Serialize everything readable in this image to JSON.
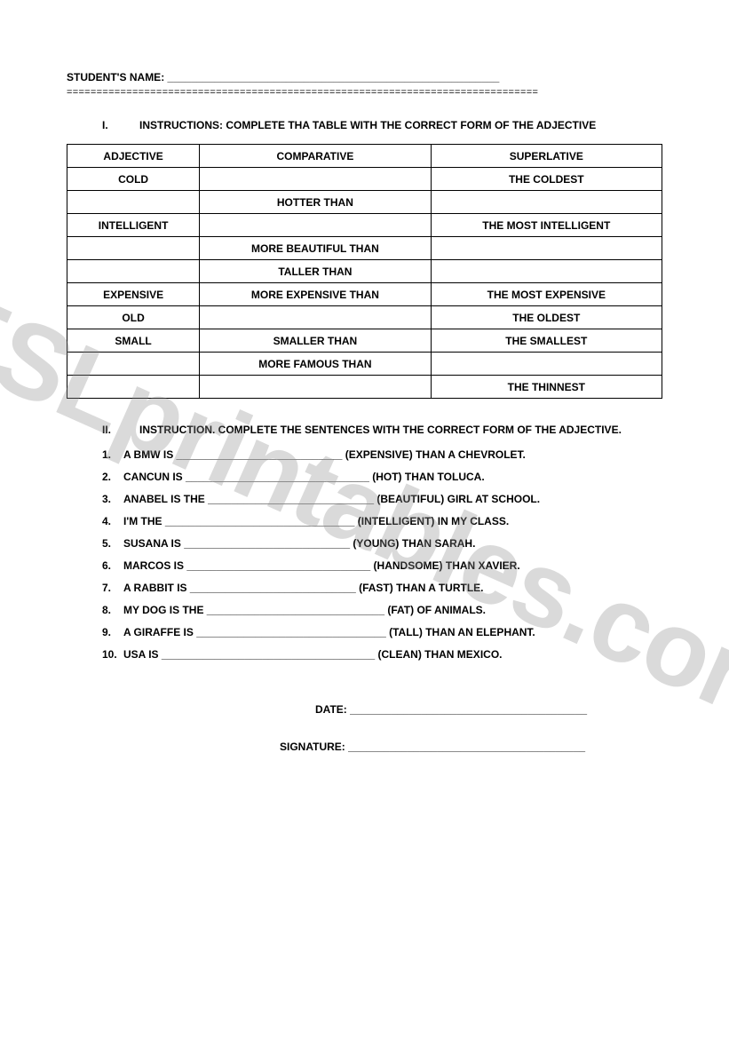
{
  "watermark_text": "ESLprintables.com",
  "colors": {
    "text": "#000000",
    "background": "#ffffff",
    "watermark": "rgba(140,140,140,0.32)",
    "border": "#000000"
  },
  "header": {
    "name_label": "STUDENT'S NAME: ________________________________________________________",
    "divider": "==============================================================================="
  },
  "section1": {
    "num": "I.",
    "title": "INSTRUCTIONS: COMPLETE THA TABLE WITH THE CORRECT FORM OF THE ADJECTIVE"
  },
  "table": {
    "columns": [
      "ADJECTIVE",
      "COMPARATIVE",
      "SUPERLATIVE"
    ],
    "rows": [
      [
        "COLD",
        "",
        "THE COLDEST"
      ],
      [
        "",
        "HOTTER THAN",
        ""
      ],
      [
        "INTELLIGENT",
        "",
        "THE MOST INTELLIGENT"
      ],
      [
        "",
        "MORE BEAUTIFUL THAN",
        ""
      ],
      [
        "",
        "TALLER THAN",
        ""
      ],
      [
        "EXPENSIVE",
        "MORE EXPENSIVE THAN",
        "THE MOST EXPENSIVE"
      ],
      [
        "OLD",
        "",
        "THE OLDEST"
      ],
      [
        "SMALL",
        "SMALLER THAN",
        "THE SMALLEST"
      ],
      [
        "",
        "MORE FAMOUS THAN",
        ""
      ],
      [
        "",
        "",
        "THE THINNEST"
      ]
    ]
  },
  "section2": {
    "num": "II.",
    "title": "INSTRUCTION. COMPLETE THE SENTENCES WITH THE CORRECT FORM OF THE ADJECTIVE."
  },
  "sentences": [
    {
      "n": "1.",
      "t": "A BMW IS ____________________________ (EXPENSIVE) THAN A CHEVROLET."
    },
    {
      "n": "2.",
      "t": "CANCUN IS _______________________________ (HOT) THAN TOLUCA."
    },
    {
      "n": "3.",
      "t": "ANABEL IS THE ____________________________ (BEAUTIFUL) GIRL AT SCHOOL."
    },
    {
      "n": "4.",
      "t": "I'M THE ________________________________ (INTELLIGENT) IN MY CLASS."
    },
    {
      "n": "5.",
      "t": "SUSANA IS ____________________________ (YOUNG) THAN SARAH."
    },
    {
      "n": "6.",
      "t": "MARCOS IS _______________________________ (HANDSOME) THAN XAVIER."
    },
    {
      "n": "7.",
      "t": "A RABBIT IS ____________________________ (FAST) THAN A TURTLE."
    },
    {
      "n": "8.",
      "t": "MY DOG IS THE ______________________________ (FAT) OF ANIMALS."
    },
    {
      "n": "9.",
      "t": "A GIRAFFE IS ________________________________ (TALL) THAN AN ELEPHANT."
    },
    {
      "n": "10.",
      "t": "USA  IS  ____________________________________ (CLEAN) THAN MEXICO."
    }
  ],
  "footer": {
    "date": "DATE: ________________________________________",
    "signature": "SIGNATURE: ________________________________________"
  }
}
